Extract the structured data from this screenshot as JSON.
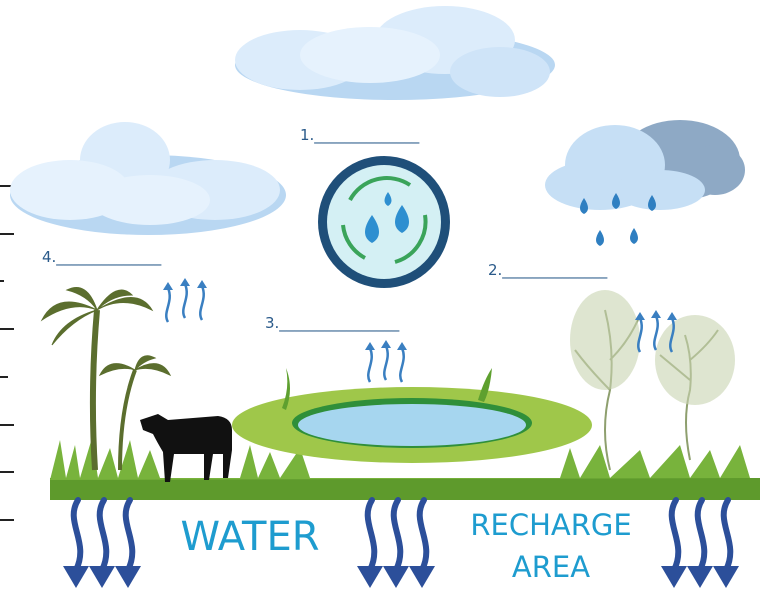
{
  "labels": [
    "1.______________",
    "2.______________",
    "3.________________",
    "4.______________"
  ],
  "caption": {
    "water": "WATER",
    "recharge": "RECHARGE",
    "area": "AREA"
  }
}
